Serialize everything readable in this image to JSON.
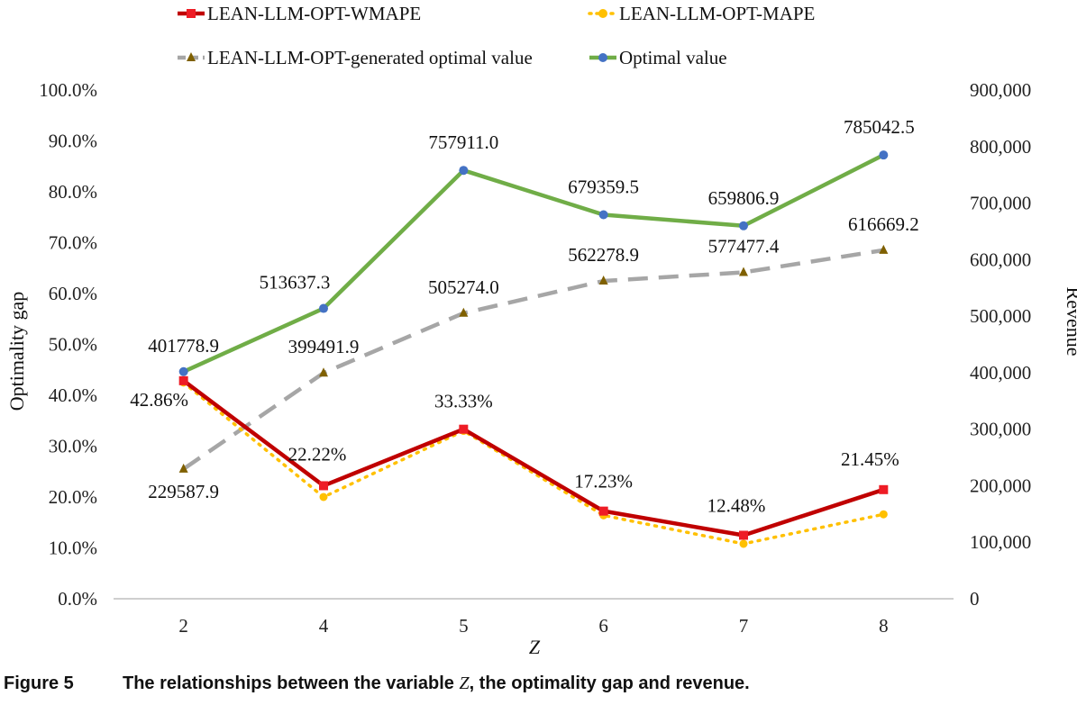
{
  "caption": {
    "figure_number": "Figure 5",
    "text_before": "The relationships between the variable ",
    "variable": "Z",
    "text_after": ", the optimality gap and revenue."
  },
  "colors": {
    "wmape": "#c00000",
    "wmape_marker": "#ee1c25",
    "mape": "#ffc000",
    "generated": "#a6a6a6",
    "generated_marker": "#7f6000",
    "optimal": "#70ad47",
    "optimal_marker": "#4472c4"
  },
  "chart_data": {
    "type": "line",
    "categories": [
      "2",
      "4",
      "5",
      "6",
      "7",
      "8"
    ],
    "xlabel": "Z",
    "ylabel_left": "Optimality gap",
    "ylabel_right": "Revenue",
    "ylim_left": [
      0,
      100
    ],
    "ylim_right": [
      0,
      900000
    ],
    "yticks_left": [
      "0.0%",
      "10.0%",
      "20.0%",
      "30.0%",
      "40.0%",
      "50.0%",
      "60.0%",
      "70.0%",
      "80.0%",
      "90.0%",
      "100.0%"
    ],
    "yticks_right": [
      "0",
      "100,000",
      "200,000",
      "300,000",
      "400,000",
      "500,000",
      "600,000",
      "700,000",
      "800,000",
      "900,000"
    ],
    "legend_position": "top",
    "grid": false,
    "series": [
      {
        "name": "LEAN-LLM-OPT-WMAPE",
        "axis": "left",
        "values": [
          42.86,
          22.22,
          33.33,
          17.23,
          12.48,
          21.45
        ],
        "labels": [
          "42.86%",
          "22.22%",
          "33.33%",
          "17.23%",
          "12.48%",
          "21.45%"
        ]
      },
      {
        "name": "LEAN-LLM-OPT-MAPE",
        "axis": "left",
        "values": [
          42.5,
          20.0,
          33.0,
          16.4,
          10.8,
          16.6
        ]
      },
      {
        "name": "LEAN-LLM-OPT-generated optimal value",
        "axis": "right",
        "values": [
          229587.9,
          399491.9,
          505274.0,
          562278.9,
          577477.4,
          616669.2
        ],
        "labels": [
          "229587.9",
          "399491.9",
          "505274.0",
          "562278.9",
          "577477.4",
          "616669.2"
        ]
      },
      {
        "name": "Optimal value",
        "axis": "right",
        "values": [
          401778.9,
          513637.3,
          757911.0,
          679359.5,
          659806.9,
          785042.5
        ],
        "labels": [
          "401778.9",
          "513637.3",
          "757911.0",
          "679359.5",
          "659806.9",
          "785042.5"
        ]
      }
    ]
  }
}
